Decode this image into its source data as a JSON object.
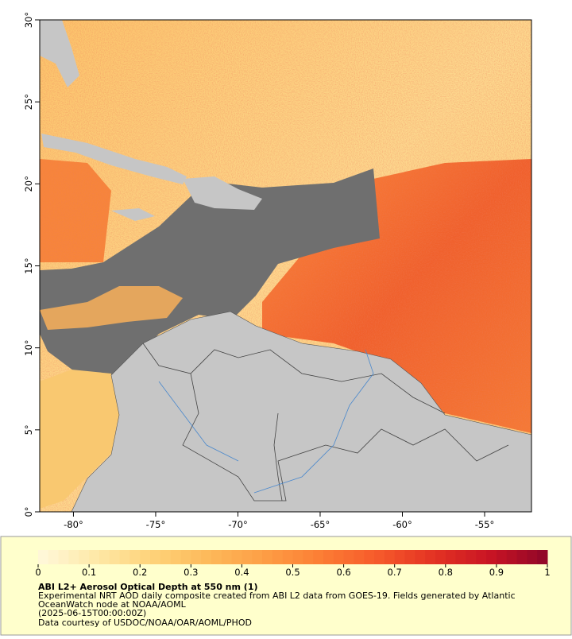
{
  "map": {
    "xlim": [
      -82.05,
      -52.15
    ],
    "ylim": [
      0,
      30
    ],
    "xticks": [
      {
        "value": -80,
        "label": "-80°"
      },
      {
        "value": -75,
        "label": "-75°"
      },
      {
        "value": -70,
        "label": "-70°"
      },
      {
        "value": -65,
        "label": "-65°"
      },
      {
        "value": -60,
        "label": "-60°"
      },
      {
        "value": -55,
        "label": "-55°"
      }
    ],
    "yticks": [
      {
        "value": 0,
        "label": "0°"
      },
      {
        "value": 5,
        "label": "5°"
      },
      {
        "value": 10,
        "label": "10°"
      },
      {
        "value": 15,
        "label": "15°"
      },
      {
        "value": 20,
        "label": "20°"
      },
      {
        "value": 25,
        "label": "25°"
      },
      {
        "value": 30,
        "label": "30°"
      }
    ]
  },
  "colorbar": {
    "range": [
      0,
      1
    ],
    "ticks": [
      0,
      0.1,
      0.2,
      0.3,
      0.4,
      0.5,
      0.6,
      0.7,
      0.8,
      0.9,
      1
    ],
    "colormap": [
      "#fff8dc",
      "#fee9a8",
      "#fed37a",
      "#fdb95a",
      "#fd9e45",
      "#fc7d34",
      "#f65a2b",
      "#e33223",
      "#c81424",
      "#8e0628"
    ]
  },
  "caption": {
    "title": "ABI L2+ Aerosol Optical Depth at 550 nm (1)",
    "lines": [
      "Experimental NRT AOD daily composite created from ABI L2 data from GOES-19. Fields generated by Atlantic",
      "OceanWatch node at NOAA/AOML",
      "(2025-06-15T00:00:00Z)",
      "Data courtesy of USDOC/NOAA/OAR/AOML/PHOD"
    ]
  }
}
